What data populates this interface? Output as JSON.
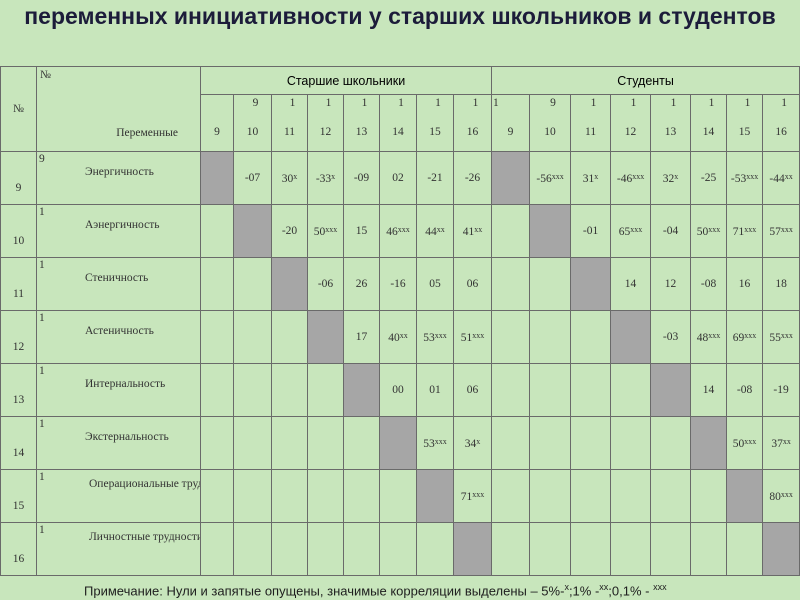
{
  "title": "переменных инициативности у старших школьников и студентов",
  "table": {
    "corner_no": "№",
    "var_header_no": "№",
    "var_header_label": "Переменные",
    "groups": [
      "Старшие школьники",
      "Студенты"
    ],
    "column_heads": {
      "seniors": [
        {
          "t1": "",
          "t2": "9"
        },
        {
          "t1": "9",
          "t2": "10"
        },
        {
          "t1": "1",
          "t2": "11"
        },
        {
          "t1": "1",
          "t2": "12"
        },
        {
          "t1": "1",
          "t2": "13"
        },
        {
          "t1": "1",
          "t2": "14"
        },
        {
          "t1": "1",
          "t2": "15"
        },
        {
          "t1": "1",
          "t2": "16"
        }
      ],
      "students": [
        {
          "t1": "1",
          "t2": "9"
        },
        {
          "t1": "9",
          "t2": "10"
        },
        {
          "t1": "1",
          "t2": "11"
        },
        {
          "t1": "1",
          "t2": "12"
        },
        {
          "t1": "1",
          "t2": "13"
        },
        {
          "t1": "1",
          "t2": "14"
        },
        {
          "t1": "1",
          "t2": "15"
        },
        {
          "t1": "1",
          "t2": "16"
        }
      ]
    },
    "rows": [
      {
        "idx": "9",
        "digit": "9",
        "name": "Энергичность",
        "seniors": [
          [
            "-07",
            ""
          ],
          [
            "30",
            "х"
          ],
          [
            "-33",
            "х"
          ],
          [
            "-09",
            ""
          ],
          [
            "02",
            ""
          ],
          [
            "-21",
            ""
          ],
          [
            "-26",
            ""
          ]
        ],
        "students": [
          [
            "-56",
            "ххх"
          ],
          [
            "31",
            "х"
          ],
          [
            "-46",
            "ххх"
          ],
          [
            "32",
            "х"
          ],
          [
            "-25",
            ""
          ],
          [
            "-53",
            "ххх"
          ],
          [
            "-44",
            "хх"
          ]
        ]
      },
      {
        "idx": "10",
        "digit": "1",
        "name": "Аэнергичность",
        "seniors": [
          [
            "-20",
            ""
          ],
          [
            "50",
            "ххх"
          ],
          [
            "15",
            ""
          ],
          [
            "46",
            "ххх"
          ],
          [
            "44",
            "хх"
          ],
          [
            "41",
            "хх"
          ]
        ],
        "students": [
          [
            "-01",
            ""
          ],
          [
            "65",
            "ххх"
          ],
          [
            "-04",
            ""
          ],
          [
            "50",
            "ххх"
          ],
          [
            "71",
            "ххх"
          ],
          [
            "57",
            "ххх"
          ]
        ]
      },
      {
        "idx": "11",
        "digit": "1",
        "name": "Стеничность",
        "seniors": [
          [
            "-06",
            ""
          ],
          [
            "26",
            ""
          ],
          [
            "-16",
            ""
          ],
          [
            "05",
            ""
          ],
          [
            "06",
            ""
          ]
        ],
        "students": [
          [
            "14",
            ""
          ],
          [
            "12",
            ""
          ],
          [
            "-08",
            ""
          ],
          [
            "16",
            ""
          ],
          [
            "18",
            ""
          ]
        ]
      },
      {
        "idx": "12",
        "digit": "1",
        "name": "Астеничность",
        "seniors": [
          [
            "17",
            ""
          ],
          [
            "40",
            "хх"
          ],
          [
            "53",
            "ххх"
          ],
          [
            "51",
            "ххх"
          ]
        ],
        "students": [
          [
            "-03",
            ""
          ],
          [
            "48",
            "ххх"
          ],
          [
            "69",
            "ххх"
          ],
          [
            "55",
            "ххх"
          ]
        ]
      },
      {
        "idx": "13",
        "digit": "1",
        "name": "Интернальность",
        "seniors": [
          [
            "00",
            ""
          ],
          [
            "01",
            ""
          ],
          [
            "06",
            ""
          ]
        ],
        "students": [
          [
            "14",
            ""
          ],
          [
            "-08",
            ""
          ],
          [
            "-19",
            ""
          ]
        ]
      },
      {
        "idx": "14",
        "digit": "1",
        "name": "Экстернальность",
        "seniors": [
          [
            "53",
            "ххх"
          ],
          [
            "34",
            "х"
          ]
        ],
        "students": [
          [
            "50",
            "ххх"
          ],
          [
            "37",
            "хх"
          ]
        ]
      },
      {
        "idx": "15",
        "digit": "1",
        "name": "Операциональные трудности",
        "seniors": [
          [
            "71",
            "ххх"
          ]
        ],
        "students": [
          [
            "80",
            "ххх"
          ]
        ]
      },
      {
        "idx": "16",
        "digit": "1",
        "name": "Личностные трудности",
        "seniors": [],
        "students": []
      }
    ]
  },
  "note": {
    "text": "Примечание: Нули и запятые опущены, значимые корреляции выделены – 5%-",
    "m1": "х",
    "t2": ";1% -",
    "m2": "хх",
    "t3": ";0,1% - ",
    "m3": "ххх"
  }
}
